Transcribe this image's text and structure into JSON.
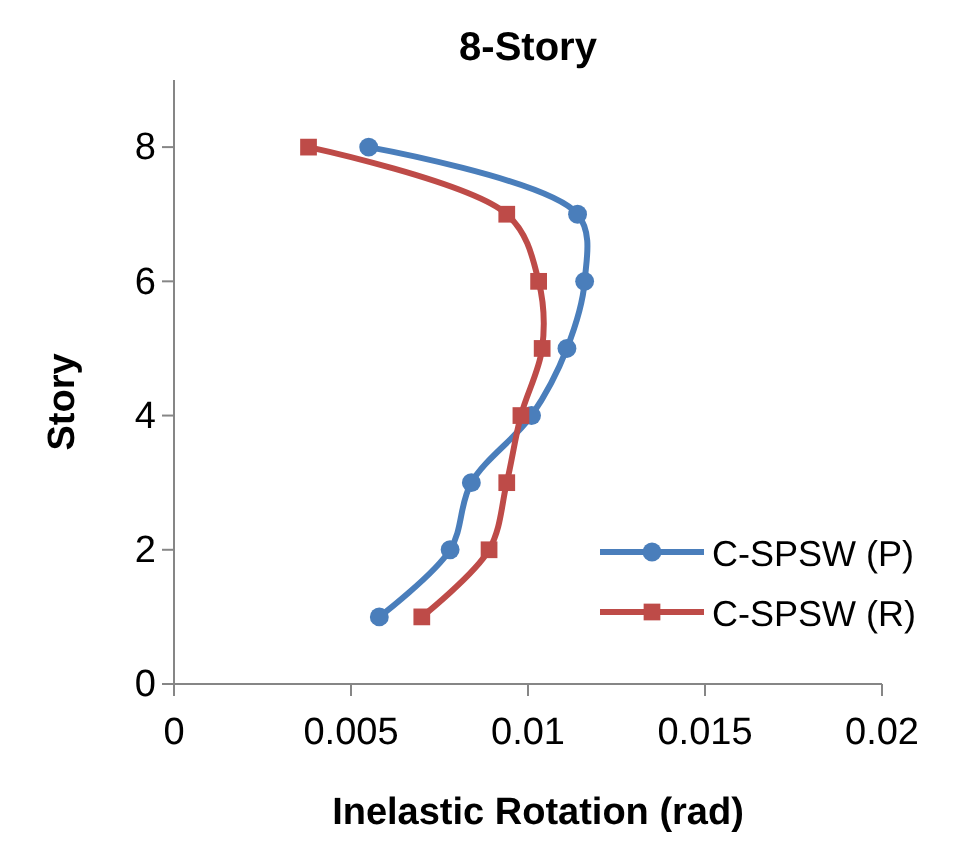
{
  "chart_data": {
    "type": "line",
    "title": "8-Story",
    "xlabel": "Inelastic Rotation (rad)",
    "ylabel": "Story",
    "xlim": [
      0,
      0.02
    ],
    "xticks": [
      0,
      0.005,
      0.01,
      0.015,
      0.02
    ],
    "ylim": [
      0,
      9
    ],
    "yticks": [
      0,
      2,
      4,
      6,
      8
    ],
    "grid": false,
    "legend": "right",
    "line_style": "solid",
    "series": [
      {
        "name": "C-SPSW (P)",
        "color": "#4a7ebb",
        "marker": "circle",
        "x": [
          0.0058,
          0.0078,
          0.0084,
          0.0101,
          0.0111,
          0.0116,
          0.0114,
          0.0055
        ],
        "values": [
          1,
          2,
          3,
          4,
          5,
          6,
          7,
          8
        ]
      },
      {
        "name": "C-SPSW (R)",
        "color": "#be4b48",
        "marker": "square",
        "x": [
          0.007,
          0.0089,
          0.0094,
          0.0098,
          0.0104,
          0.0103,
          0.0094,
          0.0038
        ],
        "values": [
          1,
          2,
          3,
          4,
          5,
          6,
          7,
          8
        ]
      }
    ]
  }
}
